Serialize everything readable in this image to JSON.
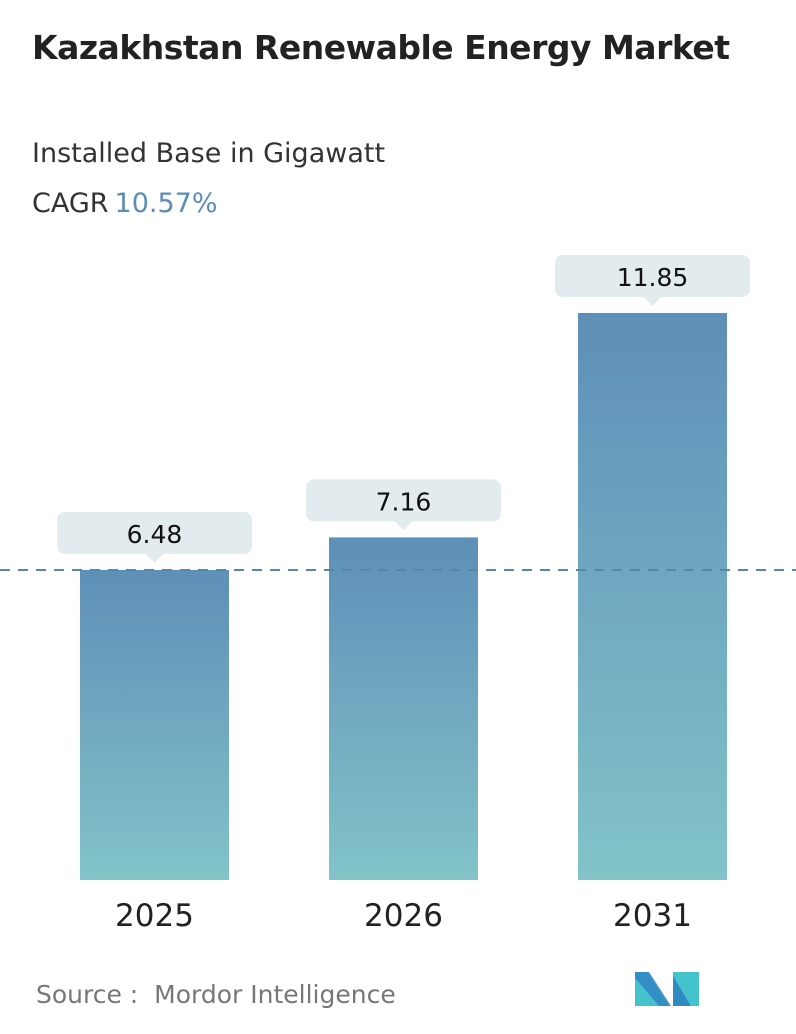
{
  "chart_data": {
    "type": "bar",
    "title": "Kazakhstan Renewable Energy Market",
    "subtitle": "Installed Base in Gigawatt",
    "cagr_label": "CAGR",
    "cagr_value": "10.57%",
    "categories": [
      "2025",
      "2026",
      "2031"
    ],
    "values": [
      6.48,
      7.16,
      11.85
    ],
    "value_labels": [
      "6.48",
      "7.16",
      "11.85"
    ],
    "ylim": [
      0,
      11.85
    ],
    "grid": false,
    "reference_line": 6.48,
    "colors": {
      "bar_top": "#5e8fb8",
      "bar_bottom": "#82c3c8",
      "label_box": "#e2ecee",
      "dashed_line": "#5a86a6",
      "accent": "#5b8db8"
    }
  },
  "source": {
    "label": "Source :",
    "name": "Mordor Intelligence"
  },
  "logo": {
    "text": "Mordor Intelligence logo",
    "colors": [
      "#2f8ac4",
      "#45c3cc"
    ]
  }
}
